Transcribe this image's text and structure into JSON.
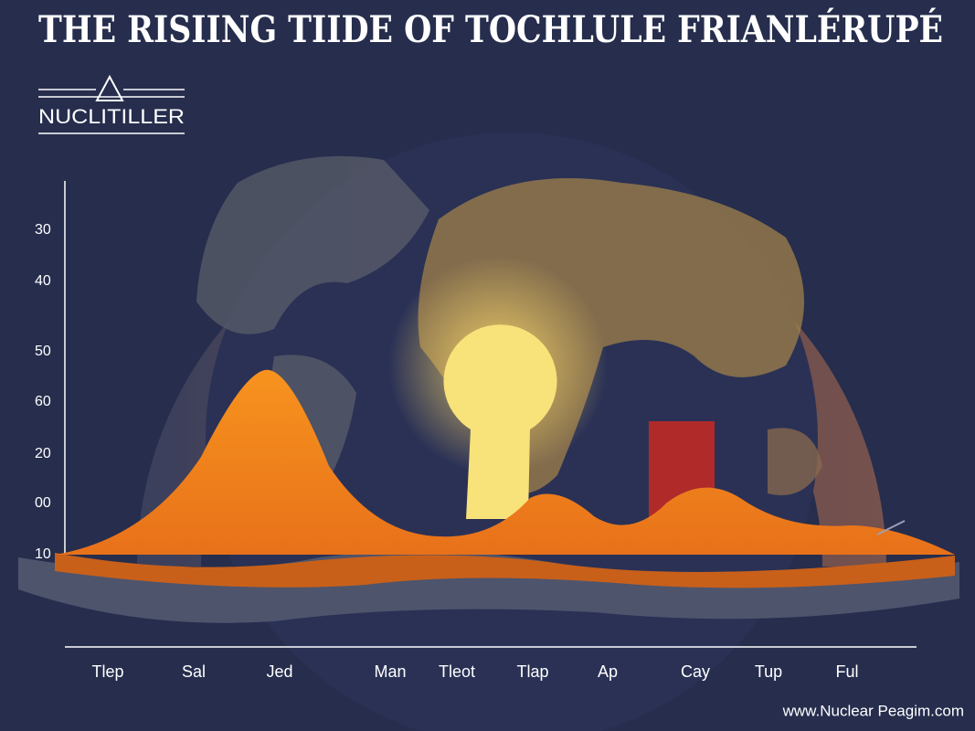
{
  "title": "THE RISIING TIIDE OF TOCHLULE FRIANLÉRUPÉ",
  "logo": "NUCLITILLER",
  "y_labels": [
    "30",
    "40",
    "50",
    "60",
    "20",
    "00",
    "10"
  ],
  "x_labels": [
    "Tlep",
    "Sal",
    "Jed",
    "Man",
    "Tleot",
    "Tlap",
    "Ap",
    "Cay",
    "Tup",
    "Ful"
  ],
  "footer": "www.Nuclear Peagim.com"
}
